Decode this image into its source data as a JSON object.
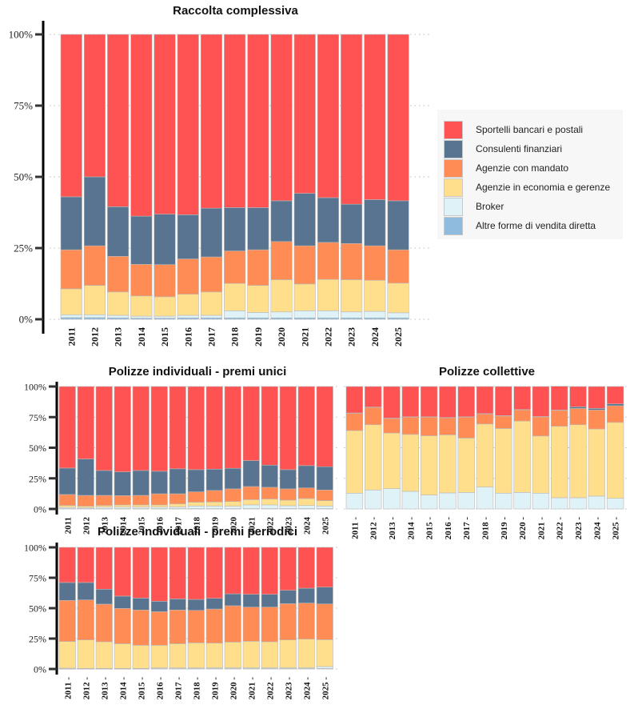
{
  "colors": {
    "Sportelli bancari e postali": "#FF5252",
    "Consulenti finanziari": "#587490",
    "Agenzie con mandato": "#FF8C55",
    "Agenzie in economia e gerenze": "#FFDE8C",
    "Broker": "#DFF2F7",
    "Altre forme di vendita diretta": "#8FBCDE"
  },
  "legend": {
    "items": [
      {
        "label": "Sportelli bancari e postali",
        "color": "#FF5252"
      },
      {
        "label": "Consulenti finanziari",
        "color": "#587490"
      },
      {
        "label": "Agenzie con mandato",
        "color": "#FF8C55"
      },
      {
        "label": "Agenzie in economia e gerenze",
        "color": "#FFDE8C"
      },
      {
        "label": "Broker",
        "color": "#DFF2F7"
      },
      {
        "label": "Altre forme di vendita diretta",
        "color": "#8FBCDE"
      }
    ]
  },
  "chart_data": [
    {
      "id": "raccolta",
      "type": "bar",
      "stacked": true,
      "percent": true,
      "title": "Raccolta complessiva",
      "xlabel": "",
      "ylabel": "",
      "ylim": [
        0,
        100
      ],
      "yticks": [
        "0%",
        "25%",
        "50%",
        "75%",
        "100%"
      ],
      "ytick_values": [
        0,
        25,
        50,
        75,
        100
      ],
      "grid": true,
      "legend_position": "right",
      "categories": [
        "2011",
        "2012",
        "2013",
        "2014",
        "2015",
        "2016",
        "2017",
        "2018",
        "2019",
        "2020",
        "2021",
        "2022",
        "2023",
        "2024",
        "2025"
      ],
      "series": [
        {
          "name": "Altre forme di vendita diretta",
          "values": [
            0.6,
            0.6,
            0.5,
            0.4,
            0.4,
            0.5,
            0.5,
            0.5,
            0.5,
            0.5,
            0.5,
            0.5,
            0.5,
            0.5,
            0.5
          ]
        },
        {
          "name": "Broker",
          "values": [
            1.0,
            1.0,
            0.9,
            0.7,
            0.7,
            0.9,
            0.9,
            2.5,
            1.9,
            2.1,
            2.5,
            2.5,
            2.1,
            2.3,
            1.8
          ]
        },
        {
          "name": "Agenzie in economia e gerenze",
          "values": [
            9.1,
            10.3,
            8.2,
            7.1,
            6.8,
            7.4,
            8.2,
            9.6,
            9.5,
            11.3,
            9.4,
            11.0,
            11.3,
            10.9,
            10.4
          ]
        },
        {
          "name": "Agenzie con mandato",
          "values": [
            13.7,
            13.9,
            12.5,
            11.1,
            11.3,
            12.4,
            12.3,
            11.4,
            12.5,
            13.4,
            13.4,
            13.0,
            12.7,
            12.1,
            11.7
          ]
        },
        {
          "name": "Consulenti finanziari",
          "values": [
            18.6,
            24.2,
            17.4,
            16.9,
            17.7,
            15.5,
            17.1,
            15.2,
            14.8,
            14.3,
            18.4,
            15.7,
            13.8,
            16.2,
            17.2
          ]
        },
        {
          "name": "Sportelli bancari e postali",
          "values": [
            57.0,
            50.0,
            60.5,
            63.8,
            63.1,
            63.3,
            61.0,
            60.8,
            60.8,
            58.4,
            55.8,
            57.3,
            59.6,
            58.0,
            58.4
          ]
        }
      ]
    },
    {
      "id": "unici",
      "type": "bar",
      "stacked": true,
      "percent": true,
      "title": "Polizze individuali - premi unici",
      "xlabel": "",
      "ylabel": "",
      "ylim": [
        0,
        100
      ],
      "yticks": [
        "0%",
        "25%",
        "50%",
        "75%",
        "100%"
      ],
      "ytick_values": [
        0,
        25,
        50,
        75,
        100
      ],
      "grid": true,
      "categories": [
        "2011",
        "2012",
        "2013",
        "2014",
        "2015",
        "2016",
        "2017",
        "2018",
        "2019",
        "2020",
        "2021",
        "2022",
        "2023",
        "2024",
        "2025"
      ],
      "series": [
        {
          "name": "Altre forme di vendita diretta",
          "values": [
            0.3,
            0.3,
            0.3,
            0.3,
            0.3,
            0.3,
            0.3,
            0.3,
            0.3,
            0.3,
            0.3,
            0.3,
            0.3,
            0.3,
            0.3
          ]
        },
        {
          "name": "Broker",
          "values": [
            1.0,
            0.8,
            1.2,
            1.2,
            1.2,
            1.2,
            1.4,
            2.1,
            2.1,
            1.9,
            3.0,
            3.0,
            2.3,
            2.5,
            2.1
          ]
        },
        {
          "name": "Agenzie in economia e gerenze",
          "values": [
            1.5,
            1.1,
            1.3,
            1.8,
            1.8,
            1.8,
            2.4,
            3.1,
            3.3,
            3.9,
            4.3,
            4.8,
            4.6,
            5.7,
            4.4
          ]
        },
        {
          "name": "Agenzie con mandato",
          "values": [
            9.0,
            8.9,
            8.3,
            7.6,
            7.8,
            9.1,
            8.3,
            8.5,
            9.4,
            10.3,
            10.7,
            9.6,
            9.2,
            8.7,
            8.7
          ]
        },
        {
          "name": "Consulenti finanziari",
          "values": [
            21.6,
            29.7,
            20.3,
            19.4,
            20.3,
            18.4,
            20.4,
            18.1,
            17.4,
            16.8,
            21.2,
            18.1,
            15.7,
            18.2,
            19.0
          ]
        },
        {
          "name": "Sportelli bancari e postali",
          "values": [
            66.6,
            59.2,
            68.6,
            69.7,
            68.6,
            69.2,
            67.2,
            67.9,
            67.5,
            66.8,
            60.5,
            64.2,
            67.9,
            64.6,
            65.5
          ]
        }
      ]
    },
    {
      "id": "collettive",
      "type": "bar",
      "stacked": true,
      "percent": true,
      "title": "Polizze collettive",
      "xlabel": "",
      "ylabel": "",
      "ylim": [
        0,
        100
      ],
      "grid": true,
      "categories": [
        "2011",
        "2012",
        "2013",
        "2014",
        "2015",
        "2016",
        "2017",
        "2018",
        "2019",
        "2020",
        "2021",
        "2022",
        "2023",
        "2024",
        "2025"
      ],
      "series": [
        {
          "name": "Altre forme di vendita diretta",
          "values": [
            0,
            0,
            0,
            0,
            0,
            0,
            0,
            0,
            0,
            0,
            0,
            0,
            0,
            0,
            0
          ]
        },
        {
          "name": "Broker",
          "values": [
            12.9,
            15.5,
            16.6,
            14.4,
            11.4,
            13.1,
            13.5,
            17.9,
            12.9,
            13.5,
            12.9,
            9.2,
            9.2,
            10.5,
            8.7
          ]
        },
        {
          "name": "Agenzie in economia e gerenze",
          "values": [
            51.1,
            53.3,
            45.4,
            46.5,
            48.4,
            47.4,
            44.4,
            51.5,
            52.8,
            58.3,
            46.7,
            58.3,
            59.6,
            54.8,
            62.0
          ]
        },
        {
          "name": "Agenzie con mandato",
          "values": [
            14.2,
            14.2,
            12.0,
            14.2,
            15.3,
            14.0,
            17.2,
            8.3,
            10.3,
            9.2,
            15.7,
            13.1,
            13.3,
            15.5,
            13.6
          ]
        },
        {
          "name": "Consulenti finanziari",
          "values": [
            0.2,
            0.2,
            0.2,
            0.2,
            0.2,
            0.2,
            0.2,
            0.2,
            0.2,
            0.2,
            0.2,
            0.2,
            1.3,
            1.3,
            1.5
          ]
        },
        {
          "name": "Sportelli bancari e postali",
          "values": [
            21.6,
            16.8,
            25.8,
            24.7,
            24.7,
            25.3,
            24.7,
            22.1,
            23.8,
            18.8,
            24.5,
            19.4,
            16.6,
            17.9,
            14.2
          ]
        }
      ]
    },
    {
      "id": "periodici",
      "type": "bar",
      "stacked": true,
      "percent": true,
      "title": "Polizze individuali - premi periodici",
      "xlabel": "",
      "ylabel": "",
      "ylim": [
        0,
        100
      ],
      "yticks": [
        "0%",
        "25%",
        "50%",
        "75%",
        "100%"
      ],
      "ytick_values": [
        0,
        25,
        50,
        75,
        100
      ],
      "grid": true,
      "categories": [
        "2011",
        "2012",
        "2013",
        "2014",
        "2015",
        "2016",
        "2017",
        "2018",
        "2019",
        "2020",
        "2021",
        "2022",
        "2023",
        "2024",
        "2025"
      ],
      "series": [
        {
          "name": "Altre forme di vendita diretta",
          "values": [
            0.2,
            0.2,
            0.2,
            0.2,
            0.2,
            0.3,
            0.3,
            0.3,
            0.3,
            0.3,
            0.3,
            0.3,
            0.3,
            0.3,
            0.4
          ]
        },
        {
          "name": "Broker",
          "values": [
            0.5,
            0.3,
            0.3,
            0.3,
            0.3,
            0.6,
            0.6,
            0.6,
            0.7,
            0.7,
            0.7,
            0.7,
            0.7,
            0.7,
            1.6
          ]
        },
        {
          "name": "Agenzie in economia e gerenze",
          "values": [
            21.9,
            23.4,
            21.9,
            20.3,
            19.0,
            18.6,
            19.9,
            20.6,
            20.3,
            21.1,
            21.8,
            21.4,
            22.9,
            23.6,
            22.1
          ]
        },
        {
          "name": "Agenzie con mandato",
          "values": [
            33.8,
            32.9,
            30.9,
            29.0,
            29.0,
            27.6,
            27.7,
            26.7,
            28.0,
            29.9,
            28.1,
            28.5,
            29.8,
            29.6,
            29.4
          ]
        },
        {
          "name": "Consulenti finanziari",
          "values": [
            14.7,
            14.3,
            12.3,
            10.1,
            9.8,
            8.6,
            9.1,
            9.0,
            8.8,
            9.8,
            10.5,
            10.5,
            11.0,
            12.2,
            13.8
          ]
        },
        {
          "name": "Sportelli bancari e postali",
          "values": [
            28.9,
            28.9,
            34.4,
            40.1,
            41.7,
            44.3,
            42.4,
            42.8,
            41.9,
            38.2,
            38.6,
            38.6,
            35.3,
            33.6,
            32.7
          ]
        }
      ]
    }
  ]
}
